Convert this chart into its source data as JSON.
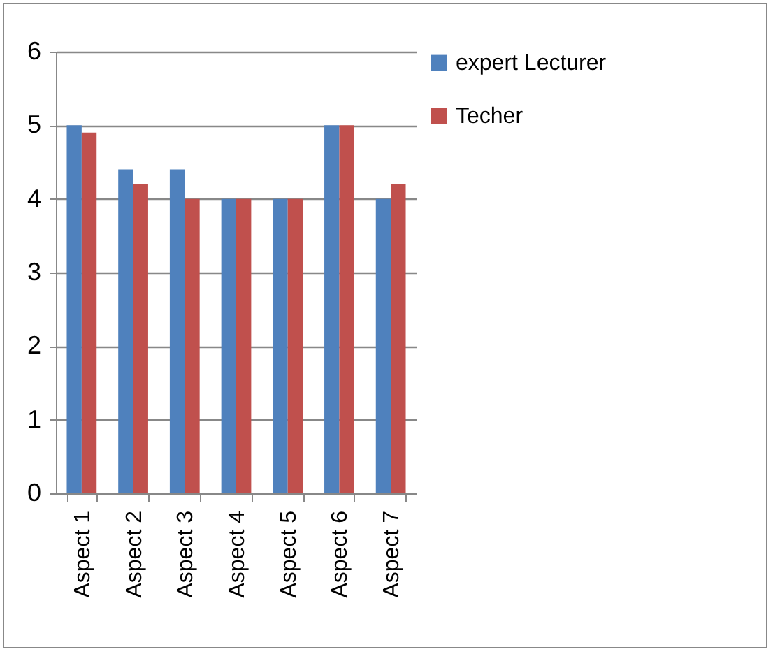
{
  "chart_data": {
    "type": "bar",
    "categories": [
      "Aspect 1",
      "Aspect 2",
      "Aspect 3",
      "Aspect 4",
      "Aspect 5",
      "Aspect 6",
      "Aspect 7"
    ],
    "series": [
      {
        "name": "expert Lecturer",
        "color": "#4f81bd",
        "values": [
          5,
          4.4,
          4.4,
          4,
          4,
          5,
          4
        ]
      },
      {
        "name": "Techer",
        "color": "#c0504d",
        "values": [
          4.9,
          4.2,
          4,
          4,
          4,
          5,
          4.2
        ]
      }
    ],
    "ylim": [
      0,
      6
    ],
    "yticks": [
      0,
      1,
      2,
      3,
      4,
      5,
      6
    ],
    "grid": "y",
    "legend": "right"
  }
}
